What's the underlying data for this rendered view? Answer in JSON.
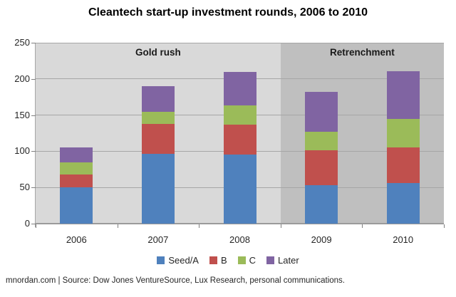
{
  "title": "Cleantech start-up investment rounds, 2006 to 2010",
  "footer": "mnordan.com | Source: Dow Jones VentureSource, Lux Research, personal communications.",
  "chart_data": {
    "type": "bar",
    "stacked": true,
    "title": "Cleantech start-up investment rounds, 2006 to 2010",
    "categories": [
      "2006",
      "2007",
      "2008",
      "2009",
      "2010"
    ],
    "series": [
      {
        "name": "Seed/A",
        "color": "#4F81BD",
        "values": [
          50,
          96,
          95,
          53,
          56
        ]
      },
      {
        "name": "B",
        "color": "#C0504D",
        "values": [
          18,
          42,
          42,
          48,
          49
        ]
      },
      {
        "name": "C",
        "color": "#9BBB59",
        "values": [
          17,
          17,
          26,
          26,
          40
        ]
      },
      {
        "name": "Later",
        "color": "#8064A2",
        "values": [
          20,
          35,
          47,
          55,
          66
        ]
      }
    ],
    "totals": [
      105,
      190,
      210,
      182,
      211
    ],
    "ylim": [
      0,
      250
    ],
    "yticks": [
      0,
      50,
      100,
      150,
      200,
      250
    ],
    "grid": true,
    "legend_position": "bottom",
    "regions": [
      {
        "label": "Gold rush",
        "categories": [
          "2006",
          "2007",
          "2008"
        ],
        "color": "#D9D9D9"
      },
      {
        "label": "Retrenchment",
        "categories": [
          "2009",
          "2010"
        ],
        "color": "#BFBFBF"
      }
    ]
  }
}
